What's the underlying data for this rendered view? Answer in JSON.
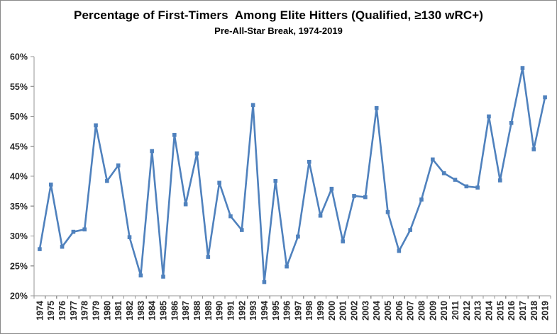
{
  "figure": {
    "title": "Percentage of First-Timers  Among Elite Hitters (Qualified, ≥130 wRC+)",
    "subtitle": "Pre-All-Star Break, 1974-2019"
  },
  "colors": {
    "line": "#4F81BD",
    "axis": "#969696",
    "tick_label": "#262626",
    "title_text": "#000000",
    "chart_border": "#898989"
  },
  "chart_data": {
    "type": "line",
    "title": "Percentage of First-Timers  Among Elite Hitters (Qualified, ≥130 wRC+)",
    "subtitle": "Pre-All-Star Break, 1974-2019",
    "x": [
      1974,
      1975,
      1976,
      1977,
      1978,
      1979,
      1980,
      1981,
      1982,
      1983,
      1984,
      1985,
      1986,
      1987,
      1988,
      1989,
      1990,
      1991,
      1992,
      1993,
      1994,
      1995,
      1996,
      1997,
      1998,
      1999,
      2000,
      2001,
      2002,
      2003,
      2004,
      2005,
      2006,
      2007,
      2008,
      2009,
      2010,
      2011,
      2012,
      2013,
      2014,
      2015,
      2016,
      2017,
      2018,
      2019
    ],
    "values": [
      27.8,
      38.6,
      28.2,
      30.7,
      31.1,
      48.5,
      39.2,
      41.8,
      29.8,
      23.4,
      44.2,
      23.2,
      46.9,
      35.3,
      43.8,
      26.5,
      38.9,
      33.3,
      31.0,
      51.9,
      22.3,
      39.2,
      24.9,
      29.9,
      42.4,
      33.4,
      37.9,
      29.1,
      36.7,
      36.5,
      51.4,
      34.0,
      27.5,
      31.0,
      36.1,
      42.8,
      40.5,
      39.4,
      38.3,
      38.1,
      50.0,
      39.3,
      48.9,
      58.1,
      44.5,
      53.2
    ],
    "ylim": [
      20,
      60
    ],
    "ytick_step": 5,
    "ytick_format": "percent",
    "ytick_labels": [
      "20%",
      "25%",
      "30%",
      "35%",
      "40%",
      "45%",
      "50%",
      "55%",
      "60%"
    ],
    "grid": false,
    "legend": null,
    "marker": "square",
    "x_label_rotation": -90
  }
}
